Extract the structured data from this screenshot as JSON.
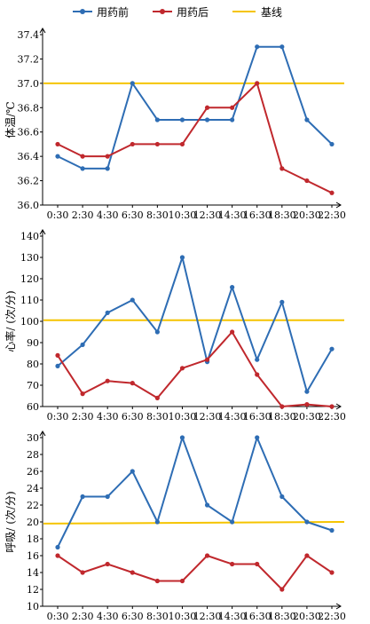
{
  "legend": {
    "before": "用药前",
    "after": "用药后",
    "baseline": "基线"
  },
  "colors": {
    "before": "#2e6db4",
    "after": "#c0282d",
    "baseline": "#f5c400"
  },
  "chart_data": [
    {
      "type": "line",
      "ylabel": "体温/℃",
      "categories": [
        "0:30",
        "2:30",
        "4:30",
        "6:30",
        "8:30",
        "10:30",
        "12:30",
        "14:30",
        "16:30",
        "18:30",
        "20:30",
        "22:30"
      ],
      "ylim": [
        36.0,
        37.4
      ],
      "yticks": [
        36.0,
        36.2,
        36.4,
        36.6,
        36.8,
        37.0,
        37.2,
        37.4
      ],
      "tick_decimals": 1,
      "series": [
        {
          "name": "用药前",
          "values": [
            36.4,
            36.3,
            36.3,
            37.0,
            36.7,
            36.7,
            36.7,
            36.7,
            37.3,
            37.3,
            36.7,
            36.5
          ]
        },
        {
          "name": "用药后",
          "values": [
            36.5,
            36.4,
            36.4,
            36.5,
            36.5,
            36.5,
            36.8,
            36.8,
            37.0,
            36.3,
            36.2,
            36.1
          ]
        }
      ],
      "baseline": {
        "name": "基线",
        "start": 37.0,
        "end": 37.0
      }
    },
    {
      "type": "line",
      "ylabel": "心率/ (次/分)",
      "categories": [
        "0:30",
        "2:30",
        "4:30",
        "6:30",
        "8:30",
        "10:30",
        "12:30",
        "14:30",
        "16:30",
        "18:30",
        "20:30",
        "22:30"
      ],
      "ylim": [
        60,
        140
      ],
      "yticks": [
        60,
        70,
        80,
        90,
        100,
        110,
        120,
        130,
        140
      ],
      "tick_decimals": 0,
      "series": [
        {
          "name": "用药前",
          "values": [
            79,
            89,
            104,
            110,
            95,
            130,
            81,
            116,
            82,
            109,
            67,
            87
          ]
        },
        {
          "name": "用药后",
          "values": [
            84,
            66,
            72,
            71,
            64,
            78,
            82,
            95,
            75,
            60,
            61,
            60
          ]
        }
      ],
      "baseline": {
        "name": "基线",
        "start": 100.5,
        "end": 100.5
      }
    },
    {
      "type": "line",
      "ylabel": "呼吸/ (次/分)",
      "categories": [
        "0:30",
        "2:30",
        "4:30",
        "6:30",
        "8:30",
        "10:30",
        "12:30",
        "14:30",
        "16:30",
        "18:30",
        "20:30",
        "22:30"
      ],
      "ylim": [
        10,
        30
      ],
      "yticks": [
        10,
        12,
        14,
        16,
        18,
        20,
        22,
        24,
        26,
        28,
        30
      ],
      "tick_decimals": 0,
      "series": [
        {
          "name": "用药前",
          "values": [
            17,
            23,
            23,
            26,
            20,
            30,
            22,
            20,
            30,
            23,
            20,
            19
          ]
        },
        {
          "name": "用药后",
          "values": [
            16,
            14,
            15,
            14,
            13,
            13,
            16,
            15,
            15,
            12,
            16,
            14
          ]
        }
      ],
      "baseline": {
        "name": "基线",
        "start": 19.8,
        "end": 20.0
      }
    }
  ]
}
